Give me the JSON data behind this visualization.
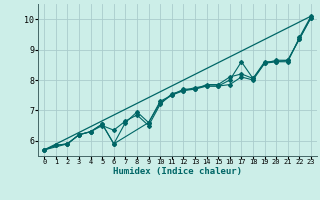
{
  "bg_color": "#cceee8",
  "grid_color": "#aacccc",
  "line_color": "#006666",
  "xlabel": "Humidex (Indice chaleur)",
  "ylim": [
    5.5,
    10.5
  ],
  "xlim": [
    -0.5,
    23.5
  ],
  "yticks": [
    6,
    7,
    8,
    9,
    10
  ],
  "xticks": [
    0,
    1,
    2,
    3,
    4,
    5,
    6,
    7,
    8,
    9,
    10,
    11,
    12,
    13,
    14,
    15,
    16,
    17,
    18,
    19,
    20,
    21,
    22,
    23
  ],
  "series": [
    {
      "x": [
        0,
        1,
        2,
        3,
        4,
        5,
        6,
        7,
        8,
        9,
        10,
        11,
        12,
        13,
        14,
        15,
        16,
        17,
        18,
        19,
        20,
        21,
        22,
        23
      ],
      "y": [
        5.7,
        5.85,
        5.9,
        6.2,
        6.3,
        6.5,
        6.35,
        6.65,
        6.85,
        6.5,
        7.2,
        7.55,
        7.65,
        7.75,
        7.8,
        7.8,
        7.85,
        8.1,
        8.0,
        8.55,
        8.6,
        8.6,
        9.4,
        10.1
      ]
    },
    {
      "x": [
        0,
        1,
        2,
        3,
        4,
        5,
        6,
        7,
        8,
        9,
        10,
        11,
        12,
        13,
        14,
        15,
        16,
        17,
        18,
        19,
        20,
        21,
        22,
        23
      ],
      "y": [
        5.7,
        5.85,
        5.9,
        6.2,
        6.3,
        6.55,
        5.9,
        6.6,
        6.95,
        6.6,
        7.3,
        7.5,
        7.7,
        7.7,
        7.85,
        7.85,
        8.1,
        8.2,
        8.05,
        8.55,
        8.65,
        8.65,
        9.35,
        10.05
      ]
    },
    {
      "x": [
        0,
        2,
        3,
        4,
        5,
        6,
        9,
        10,
        11,
        12,
        13,
        14,
        15,
        16,
        17,
        18,
        19,
        20,
        21,
        22,
        23
      ],
      "y": [
        5.7,
        5.9,
        6.2,
        6.3,
        6.55,
        5.9,
        6.6,
        7.25,
        7.5,
        7.65,
        7.7,
        7.8,
        7.8,
        8.0,
        8.6,
        8.05,
        8.6,
        8.6,
        8.65,
        9.35,
        10.05
      ]
    },
    {
      "x": [
        0,
        23
      ],
      "y": [
        5.7,
        10.1
      ]
    }
  ],
  "figsize": [
    3.2,
    2.0
  ],
  "dpi": 100
}
